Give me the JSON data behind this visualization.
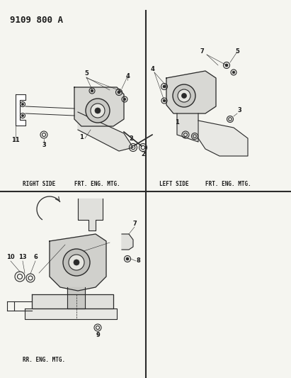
{
  "title": "9109 800 A",
  "bg_color": "#f5f5f0",
  "line_color": "#2a2a2a",
  "text_color": "#1a1a1a",
  "divider_color": "#1a1a1a",
  "labels": {
    "right_side": "RIGHT SIDE",
    "right_frt": "FRT. ENG. MTG.",
    "left_side": "LEFT SIDE",
    "left_frt": "FRT. ENG. MTG.",
    "rear": "RR. ENG. MTG."
  },
  "font_size_label": 5.5,
  "font_size_title": 9,
  "font_size_num": 6
}
